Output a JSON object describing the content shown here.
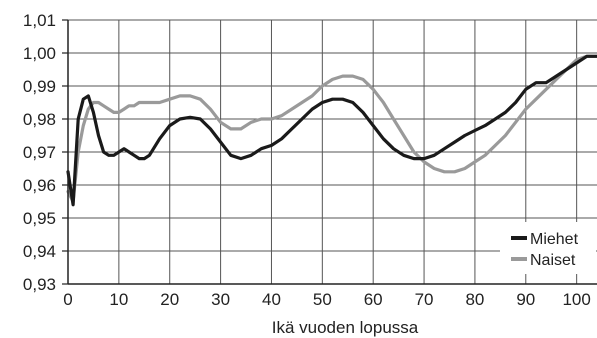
{
  "chart_data": {
    "type": "line",
    "title": "",
    "xlabel": "Ikä vuoden lopussa",
    "ylabel": "",
    "xlim": [
      0,
      104
    ],
    "ylim": [
      0.93,
      1.01
    ],
    "xticks": [
      0,
      10,
      20,
      30,
      40,
      50,
      60,
      70,
      80,
      90,
      100
    ],
    "xtick_labels": [
      "0",
      "10",
      "20",
      "30",
      "40",
      "50",
      "60",
      "70",
      "80",
      "90",
      "100"
    ],
    "yticks": [
      0.93,
      0.94,
      0.95,
      0.96,
      0.97,
      0.98,
      0.99,
      1.0,
      1.01
    ],
    "ytick_labels": [
      "0,93",
      "0,94",
      "0,95",
      "0,96",
      "0,97",
      "0,98",
      "0,99",
      "1,00",
      "1,01"
    ],
    "grid": true,
    "legend_position": "bottom-right",
    "series": [
      {
        "name": "Miehet",
        "color": "#1a1a1a",
        "x": [
          0,
          1,
          2,
          3,
          4,
          5,
          6,
          7,
          8,
          9,
          10,
          11,
          12,
          13,
          14,
          15,
          16,
          18,
          20,
          22,
          24,
          26,
          28,
          30,
          32,
          34,
          36,
          38,
          40,
          42,
          44,
          46,
          48,
          50,
          52,
          54,
          56,
          58,
          60,
          62,
          64,
          66,
          68,
          70,
          72,
          74,
          76,
          78,
          80,
          82,
          84,
          86,
          88,
          90,
          92,
          94,
          96,
          98,
          100,
          102,
          104
        ],
        "y": [
          0.964,
          0.954,
          0.98,
          0.986,
          0.987,
          0.982,
          0.975,
          0.97,
          0.969,
          0.969,
          0.97,
          0.971,
          0.97,
          0.969,
          0.968,
          0.968,
          0.969,
          0.974,
          0.978,
          0.98,
          0.9805,
          0.98,
          0.977,
          0.973,
          0.969,
          0.968,
          0.969,
          0.971,
          0.972,
          0.974,
          0.977,
          0.98,
          0.983,
          0.985,
          0.986,
          0.986,
          0.985,
          0.982,
          0.978,
          0.974,
          0.971,
          0.969,
          0.968,
          0.968,
          0.969,
          0.971,
          0.973,
          0.975,
          0.9765,
          0.978,
          0.98,
          0.982,
          0.985,
          0.989,
          0.991,
          0.991,
          0.993,
          0.995,
          0.997,
          0.999,
          0.999
        ]
      },
      {
        "name": "Naiset",
        "color": "#9a9a9a",
        "x": [
          0,
          1,
          2,
          3,
          4,
          5,
          6,
          7,
          8,
          9,
          10,
          11,
          12,
          13,
          14,
          15,
          16,
          18,
          20,
          22,
          24,
          26,
          28,
          30,
          32,
          34,
          36,
          38,
          40,
          42,
          44,
          46,
          48,
          50,
          52,
          54,
          56,
          58,
          60,
          62,
          64,
          66,
          68,
          70,
          72,
          74,
          76,
          78,
          80,
          82,
          84,
          86,
          88,
          90,
          92,
          94,
          96,
          98,
          100,
          102,
          104
        ],
        "y": [
          0.958,
          0.955,
          0.97,
          0.978,
          0.983,
          0.985,
          0.985,
          0.984,
          0.983,
          0.982,
          0.982,
          0.983,
          0.984,
          0.984,
          0.985,
          0.985,
          0.985,
          0.985,
          0.986,
          0.987,
          0.987,
          0.986,
          0.983,
          0.979,
          0.977,
          0.977,
          0.979,
          0.98,
          0.98,
          0.981,
          0.983,
          0.985,
          0.987,
          0.99,
          0.992,
          0.993,
          0.993,
          0.992,
          0.989,
          0.985,
          0.98,
          0.975,
          0.97,
          0.967,
          0.965,
          0.964,
          0.964,
          0.965,
          0.967,
          0.969,
          0.972,
          0.975,
          0.979,
          0.983,
          0.986,
          0.989,
          0.992,
          0.995,
          0.998,
          0.999,
          0.999
        ]
      }
    ]
  }
}
